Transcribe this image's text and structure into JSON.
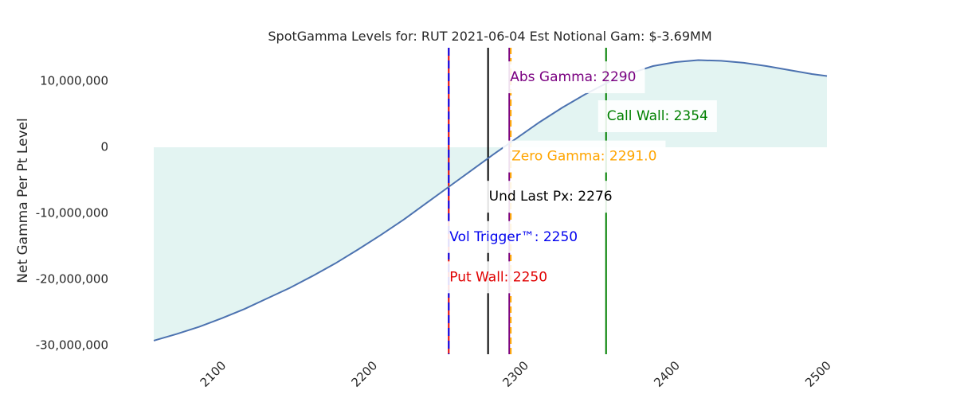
{
  "chart_data": {
    "type": "area",
    "title": "SpotGamma Levels for: RUT  2021-06-04 Est Notional Gam: $-3.69MM",
    "xlabel": "",
    "ylabel": "Net Gamma Per Pt Level",
    "xlim": [
      2050,
      2500
    ],
    "ylim": [
      -31500000,
      15000000
    ],
    "x_ticks": [
      2100,
      2200,
      2300,
      2400,
      2500
    ],
    "x_tick_labels": [
      "2100",
      "2200",
      "2300",
      "2400",
      "2500"
    ],
    "y_ticks": [
      10000000,
      0,
      -10000000,
      -20000000,
      -30000000
    ],
    "y_tick_labels": [
      "10,000,000",
      "0",
      "-10,000,000",
      "-20,000,000",
      "-30,000,000"
    ],
    "grid": false,
    "colors": {
      "line": "#4c72b0",
      "fill": "#e3f4f2",
      "put_wall": "#e00000",
      "vol_trigger": "#0000ee",
      "abs_gamma": "#7a0080",
      "zero_gamma": "#ffa500",
      "spot": "#000000",
      "call_wall": "#008000"
    },
    "series": [
      {
        "x": [
          2055,
          2070,
          2085,
          2100,
          2115,
          2130,
          2145,
          2160,
          2175,
          2190,
          2205,
          2220,
          2235,
          2250,
          2265,
          2280,
          2295,
          2310,
          2325,
          2340,
          2355,
          2370,
          2385,
          2400,
          2415,
          2430,
          2445,
          2460,
          2475,
          2490,
          2500
        ],
        "values": [
          -29300000,
          -28300000,
          -27200000,
          -25900000,
          -24500000,
          -22900000,
          -21300000,
          -19500000,
          -17600000,
          -15500000,
          -13300000,
          -11000000,
          -8500000,
          -6000000,
          -3500000,
          -1000000,
          1400000,
          3800000,
          6000000,
          8000000,
          9800000,
          11200000,
          12300000,
          12900000,
          13200000,
          13100000,
          12800000,
          12300000,
          11700000,
          11100000,
          10800000
        ]
      }
    ],
    "levels": [
      {
        "key": "put_wall",
        "x": 2250,
        "label": "Put Wall: 2250",
        "color": "#e00000",
        "label_y": -19700000
      },
      {
        "key": "vol_trigger",
        "x": 2250,
        "label": "Vol Trigger™: 2250",
        "color": "#0000ee",
        "label_y": -13600000
      },
      {
        "key": "spot",
        "x": 2276,
        "label": "Und Last Px: 2276",
        "color": "#000000",
        "label_y": -7500000
      },
      {
        "key": "abs_gamma",
        "x": 2290,
        "label": "Abs Gamma: 2290",
        "color": "#7a0080",
        "label_y": 10600000
      },
      {
        "key": "zero_gamma",
        "x": 2291.0,
        "label": "Zero Gamma: 2291.0",
        "color": "#ffa500",
        "label_y": -1400000
      },
      {
        "key": "call_wall",
        "x": 2354,
        "label": "Call Wall: 2354",
        "color": "#008000",
        "label_y": 4700000
      }
    ]
  }
}
